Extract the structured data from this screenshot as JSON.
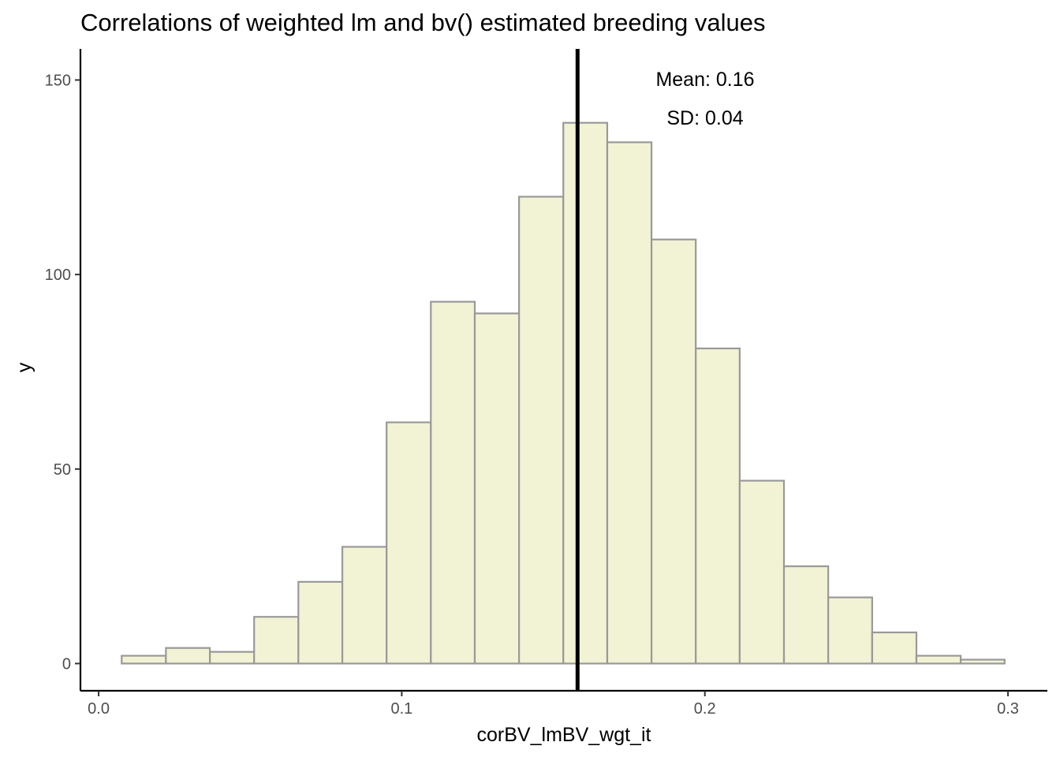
{
  "chart_data": {
    "type": "bar",
    "title": "Correlations of weighted lm and bv() estimated breeding values",
    "xlabel": "corBV_lmBV_wgt_it",
    "ylabel": "y",
    "xlim": [
      -0.006,
      0.313
    ],
    "ylim": [
      -7,
      158
    ],
    "x_ticks": [
      0.0,
      0.1,
      0.2,
      0.3
    ],
    "x_tick_labels": [
      "0.0",
      "0.1",
      "0.2",
      "0.3"
    ],
    "y_ticks": [
      0,
      50,
      100,
      150
    ],
    "y_tick_labels": [
      "0",
      "50",
      "100",
      "150"
    ],
    "bin_width": 0.0146,
    "bins": [
      {
        "x0": 0.0076,
        "x1": 0.0222,
        "count": 2
      },
      {
        "x0": 0.0222,
        "x1": 0.0367,
        "count": 4
      },
      {
        "x0": 0.0367,
        "x1": 0.0513,
        "count": 3
      },
      {
        "x0": 0.0513,
        "x1": 0.0659,
        "count": 12
      },
      {
        "x0": 0.0659,
        "x1": 0.0804,
        "count": 21
      },
      {
        "x0": 0.0804,
        "x1": 0.095,
        "count": 30
      },
      {
        "x0": 0.095,
        "x1": 0.1096,
        "count": 62
      },
      {
        "x0": 0.1096,
        "x1": 0.1241,
        "count": 93
      },
      {
        "x0": 0.1241,
        "x1": 0.1387,
        "count": 90
      },
      {
        "x0": 0.1387,
        "x1": 0.1533,
        "count": 120
      },
      {
        "x0": 0.1533,
        "x1": 0.1678,
        "count": 139
      },
      {
        "x0": 0.1678,
        "x1": 0.1824,
        "count": 134
      },
      {
        "x0": 0.1824,
        "x1": 0.197,
        "count": 109
      },
      {
        "x0": 0.197,
        "x1": 0.2115,
        "count": 81
      },
      {
        "x0": 0.2115,
        "x1": 0.2261,
        "count": 47
      },
      {
        "x0": 0.2261,
        "x1": 0.2407,
        "count": 25
      },
      {
        "x0": 0.2407,
        "x1": 0.2552,
        "count": 17
      },
      {
        "x0": 0.2552,
        "x1": 0.2698,
        "count": 8
      },
      {
        "x0": 0.2698,
        "x1": 0.2844,
        "count": 2
      },
      {
        "x0": 0.2844,
        "x1": 0.2989,
        "count": 1
      }
    ],
    "mean_line_x": 0.158,
    "annotations": {
      "mean": "Mean: 0.16",
      "sd": "SD: 0.04"
    },
    "bar_fill": "#f2f2d5",
    "bar_stroke": "#999999",
    "line_color": "#000000",
    "grid": false,
    "legend": "none"
  }
}
